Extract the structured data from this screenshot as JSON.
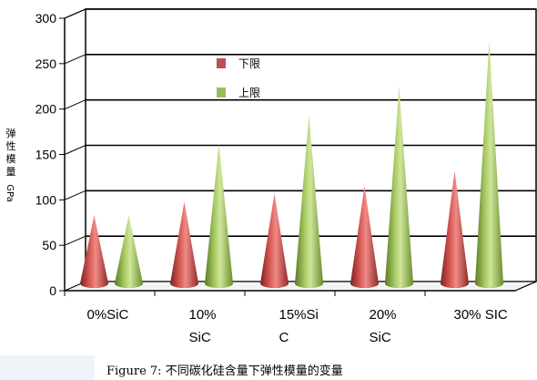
{
  "chart_data": {
    "type": "bar",
    "style": "3d-cone",
    "categories": [
      "0%SiC",
      "10% SiC",
      "15%SiC",
      "20% SiC",
      "30% SIC"
    ],
    "category_label_lines": [
      [
        "0%SiC"
      ],
      [
        "10%",
        "SiC"
      ],
      [
        "15%Si",
        "C"
      ],
      [
        "20%",
        "SiC"
      ],
      [
        "30% SIC"
      ]
    ],
    "series": [
      {
        "name": "下限",
        "values": [
          78,
          93,
          102,
          110,
          127
        ],
        "color": "#c0504d"
      },
      {
        "name": "上限",
        "values": [
          78,
          157,
          189,
          220,
          270
        ],
        "color": "#9bbb59"
      }
    ],
    "ylabel": "弹性模量GPa",
    "ylabel_chars": [
      "弹",
      "性",
      "模",
      "量",
      "GPa"
    ],
    "ylim": [
      0,
      300
    ],
    "yticks": [
      0,
      50,
      100,
      150,
      200,
      250,
      300
    ],
    "grid": true,
    "legend": "top-center"
  },
  "caption": "Figure 7: 不同碳化硅含量下弹性模量的变量"
}
